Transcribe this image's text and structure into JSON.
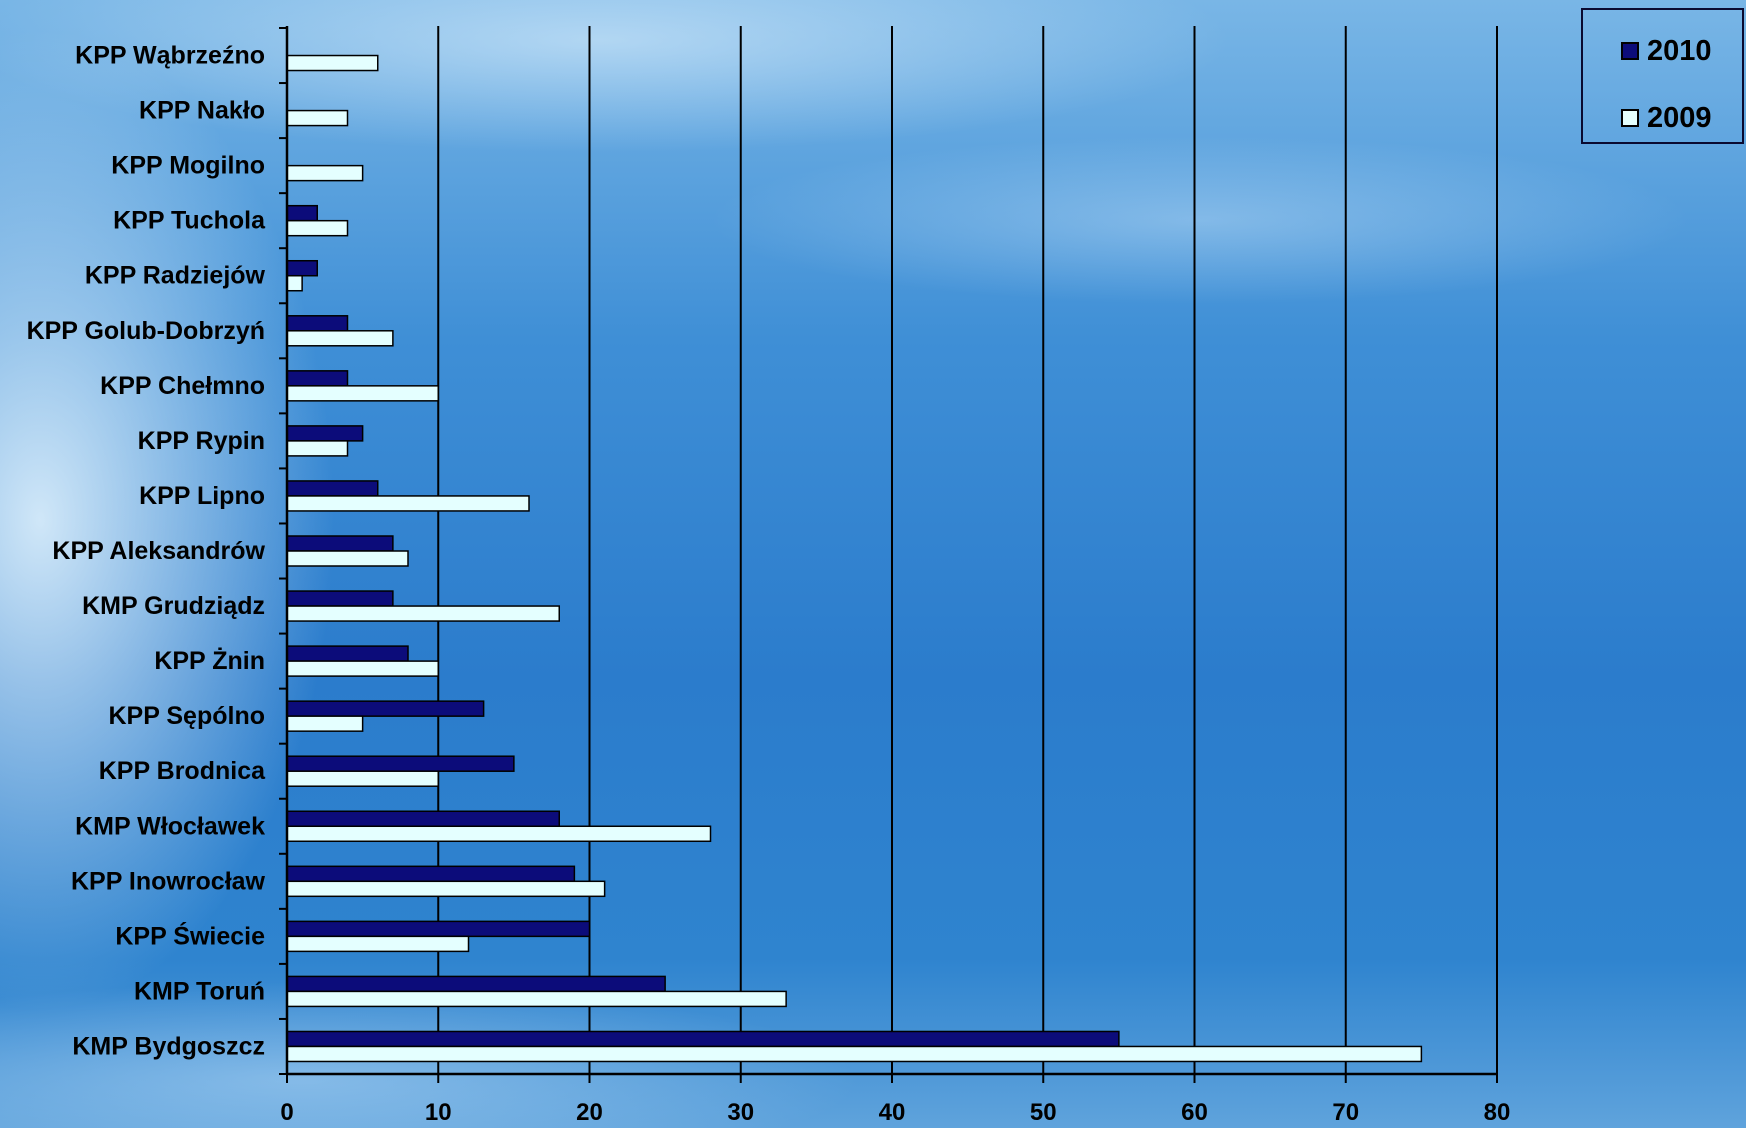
{
  "chart_data": {
    "type": "bar",
    "orientation": "horizontal",
    "categories": [
      "KPP Wąbrzeźno",
      "KPP Nakło",
      "KPP Mogilno",
      "KPP Tuchola",
      "KPP Radziejów",
      "KPP Golub-Dobrzyń",
      "KPP Chełmno",
      "KPP Rypin",
      "KPP Lipno",
      "KPP Aleksandrów",
      "KMP Grudziądz",
      "KPP Żnin",
      "KPP Sępólno",
      "KPP Brodnica",
      "KMP Włocławek",
      "KPP Inowrocław",
      "KPP Świecie",
      "KMP Toruń",
      "KMP Bydgoszcz"
    ],
    "series": [
      {
        "name": "2010",
        "color": "#0c0c7a",
        "values": [
          0,
          0,
          0,
          2,
          2,
          4,
          4,
          5,
          6,
          7,
          7,
          8,
          13,
          15,
          18,
          19,
          20,
          25,
          55
        ]
      },
      {
        "name": "2009",
        "color": "#e4ffff",
        "values": [
          6,
          4,
          5,
          4,
          1,
          7,
          10,
          4,
          16,
          8,
          18,
          10,
          5,
          10,
          28,
          21,
          12,
          33,
          75
        ]
      }
    ],
    "xlim": [
      0,
      80
    ],
    "xticks": [
      "0",
      "10",
      "20",
      "30",
      "40",
      "50",
      "60",
      "70",
      "80"
    ],
    "grid": "vertical",
    "legend_position": "top-right"
  }
}
